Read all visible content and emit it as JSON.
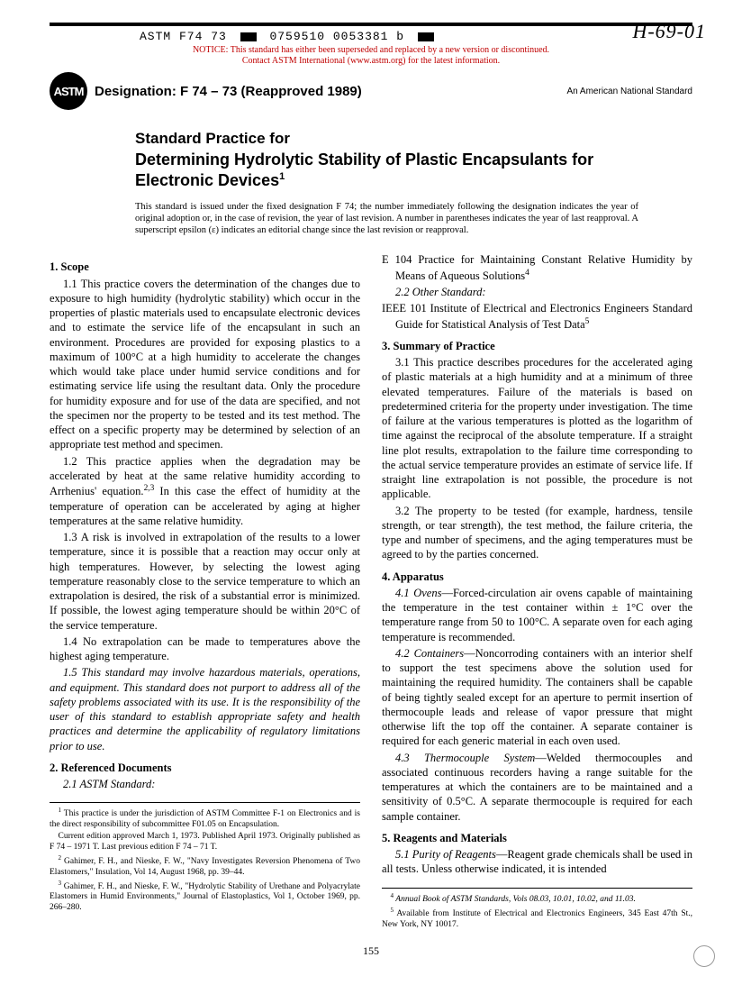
{
  "header": {
    "code_line": "ASTM F74 73",
    "code_seq": "0759510 0053381 b",
    "hand_annotation": "H-69-01",
    "notice_line1": "NOTICE: This standard has either been superseded and replaced by a new version or discontinued.",
    "notice_line2": "Contact ASTM International (www.astm.org) for the latest information.",
    "logo_text": "ASTM",
    "designation": "Designation: F 74 – 73 (Reapproved 1989)",
    "ans": "An American National Standard"
  },
  "title": {
    "pre": "Standard Practice for",
    "main": "Determining Hydrolytic Stability of Plastic Encapsulants for Electronic Devices",
    "sup": "1"
  },
  "issuance": "This standard is issued under the fixed designation F 74; the number immediately following the designation indicates the year of original adoption or, in the case of revision, the year of last revision. A number in parentheses indicates the year of last reapproval. A superscript epsilon (ε) indicates an editorial change since the last revision or reapproval.",
  "sections": {
    "scope_head": "1. Scope",
    "s1_1": "1.1 This practice covers the determination of the changes due to exposure to high humidity (hydrolytic stability) which occur in the properties of plastic materials used to encapsulate electronic devices and to estimate the service life of the encapsulant in such an environment. Procedures are provided for exposing plastics to a maximum of 100°C at a high humidity to accelerate the changes which would take place under humid service conditions and for estimating service life using the resultant data. Only the procedure for humidity exposure and for use of the data are specified, and not the specimen nor the property to be tested and its test method. The effect on a specific property may be determined by selection of an appropriate test method and specimen.",
    "s1_2a": "1.2 This practice applies when the degradation may be accelerated by heat at the same relative humidity according to Arrhenius' equation.",
    "s1_2b": " In this case the effect of humidity at the temperature of operation can be accelerated by aging at higher temperatures at the same relative humidity.",
    "s1_2_sup": "2,3",
    "s1_3": "1.3 A risk is involved in extrapolation of the results to a lower temperature, since it is possible that a reaction may occur only at high temperatures. However, by selecting the lowest aging temperature reasonably close to the service temperature to which an extrapolation is desired, the risk of a substantial error is minimized. If possible, the lowest aging temperature should be within 20°C of the service temperature.",
    "s1_4": "1.4 No extrapolation can be made to temperatures above the highest aging temperature.",
    "s1_5": "1.5 This standard may involve hazardous materials, operations, and equipment. This standard does not purport to address all of the safety problems associated with its use. It is the responsibility of the user of this standard to establish appropriate safety and health practices and determine the applicability of regulatory limitations prior to use.",
    "ref_head": "2. Referenced Documents",
    "s2_1": "2.1 ASTM Standard:",
    "e104a": "E 104 Practice for Maintaining Constant Relative Humidity by Means of Aqueous Solutions",
    "e104_sup": "4",
    "s2_2": "2.2 Other Standard:",
    "ieee": "IEEE 101 Institute of Electrical and Electronics Engineers Standard Guide for Statistical Analysis of Test Data",
    "ieee_sup": "5",
    "summary_head": "3. Summary of Practice",
    "s3_1": "3.1 This practice describes procedures for the accelerated aging of plastic materials at a high humidity and at a minimum of three elevated temperatures. Failure of the materials is based on predetermined criteria for the property under investigation. The time of failure at the various temperatures is plotted as the logarithm of time against the reciprocal of the absolute temperature. If a straight line plot results, extrapolation to the failure time corresponding to the actual service temperature provides an estimate of service life. If straight line extrapolation is not possible, the procedure is not applicable.",
    "s3_2": "3.2 The property to be tested (for example, hardness, tensile strength, or tear strength), the test method, the failure criteria, the type and number of specimens, and the aging temperatures must be agreed to by the parties concerned.",
    "apparatus_head": "4. Apparatus",
    "s4_1_label": "4.1 Ovens",
    "s4_1": "—Forced-circulation air ovens capable of maintaining the temperature in the test container within ± 1°C over the temperature range from 50 to 100°C. A separate oven for each aging temperature is recommended.",
    "s4_2_label": "4.2 Containers",
    "s4_2": "—Noncorroding containers with an interior shelf to support the test specimens above the solution used for maintaining the required humidity. The containers shall be capable of being tightly sealed except for an aperture to permit insertion of thermocouple leads and release of vapor pressure that might otherwise lift the top off the container. A separate container is required for each generic material in each oven used.",
    "s4_3_label": "4.3 Thermocouple System",
    "s4_3": "—Welded thermocouples and associated continuous recorders having a range suitable for the temperatures at which the containers are to be maintained and a sensitivity of 0.5°C. A separate thermocouple is required for each sample container.",
    "reagents_head": "5. Reagents and Materials",
    "s5_1_label": "5.1 Purity of Reagents",
    "s5_1": "—Reagent grade chemicals shall be used in all tests. Unless otherwise indicated, it is intended"
  },
  "footnotes_left": {
    "f1a": " This practice is under the jurisdiction of ASTM Committee F-1 on Electronics and is the direct responsibility of subcommittee F01.05 on Encapsulation.",
    "f1b": "Current edition approved March 1, 1973. Published April 1973. Originally published as F 74 – 1971 T. Last previous edition F 74 – 71 T.",
    "f2": " Gahimer, F. H., and Nieske, F. W., \"Navy Investigates Reversion Phenomena of Two Elastomers,\" Insulation, Vol 14, August 1968, pp. 39–44.",
    "f3": " Gahimer, F. H., and Nieske, F. W., \"Hydrolytic Stability of Urethane and Polyacrylate Elastomers in Humid Environments,\" Journal of Elastoplastics, Vol 1, October 1969, pp. 266–280."
  },
  "footnotes_right": {
    "f4": " Annual Book of ASTM Standards, Vols 08.03, 10.01, 10.02, and 11.03.",
    "f5": " Available from Institute of Electrical and Electronics Engineers, 345 East 47th St., New York, NY 10017."
  },
  "page_number": "155"
}
